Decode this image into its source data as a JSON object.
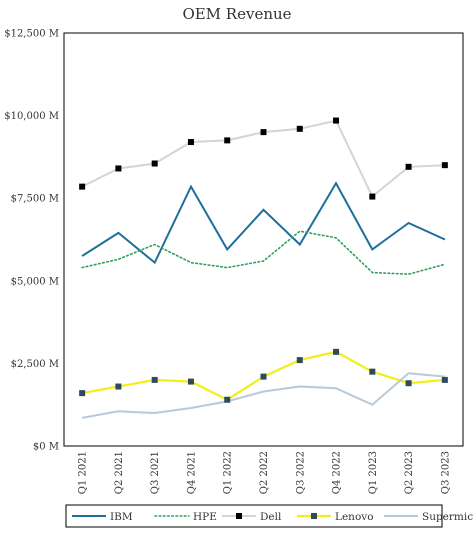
{
  "chart_data": {
    "type": "line",
    "title": "OEM Revenue",
    "xlabel": "",
    "ylabel": "",
    "categories": [
      "Q1 2021",
      "Q2 2021",
      "Q3 2021",
      "Q4 2021",
      "Q1 2022",
      "Q2 2022",
      "Q3 2022",
      "Q4 2022",
      "Q1 2023",
      "Q2 2023",
      "Q3 2023"
    ],
    "ylim": [
      0,
      12500
    ],
    "yticks": [
      0,
      2500,
      5000,
      7500,
      10000,
      12500
    ],
    "ytick_labels": [
      "$0 M",
      "$2,500 M",
      "$5,000 M",
      "$7,500 M",
      "$10,000 M",
      "$12,500 M"
    ],
    "grid": false,
    "legend_position": "bottom",
    "series": [
      {
        "name": "IBM",
        "color": "#1f6e9c",
        "style": "solid",
        "marker": "none",
        "values": [
          5750,
          6450,
          5550,
          7850,
          5950,
          7150,
          6100,
          7950,
          5950,
          6750,
          6250
        ]
      },
      {
        "name": "HPE",
        "color": "#2e9e5b",
        "style": "dotted",
        "marker": "none",
        "values": [
          5400,
          5650,
          6100,
          5550,
          5400,
          5600,
          6500,
          6300,
          5250,
          5200,
          5500
        ]
      },
      {
        "name": "Dell",
        "color": "#d4d4d4",
        "style": "solid",
        "marker": "square",
        "marker_color": "#000000",
        "values": [
          7850,
          8400,
          8550,
          9200,
          9250,
          9500,
          9600,
          9850,
          7550,
          8450,
          8500
        ]
      },
      {
        "name": "Lenovo",
        "color": "#f2ee1a",
        "style": "solid",
        "marker": "square",
        "marker_color": "#2e4a5e",
        "values": [
          1600,
          1800,
          2000,
          1950,
          1400,
          2100,
          2600,
          2850,
          2250,
          1900,
          2000
        ]
      },
      {
        "name": "Supermicro",
        "color": "#b9c9d9",
        "style": "solid",
        "marker": "none",
        "values": [
          850,
          1050,
          1000,
          1150,
          1350,
          1650,
          1800,
          1750,
          1250,
          2200,
          2100
        ]
      }
    ]
  }
}
